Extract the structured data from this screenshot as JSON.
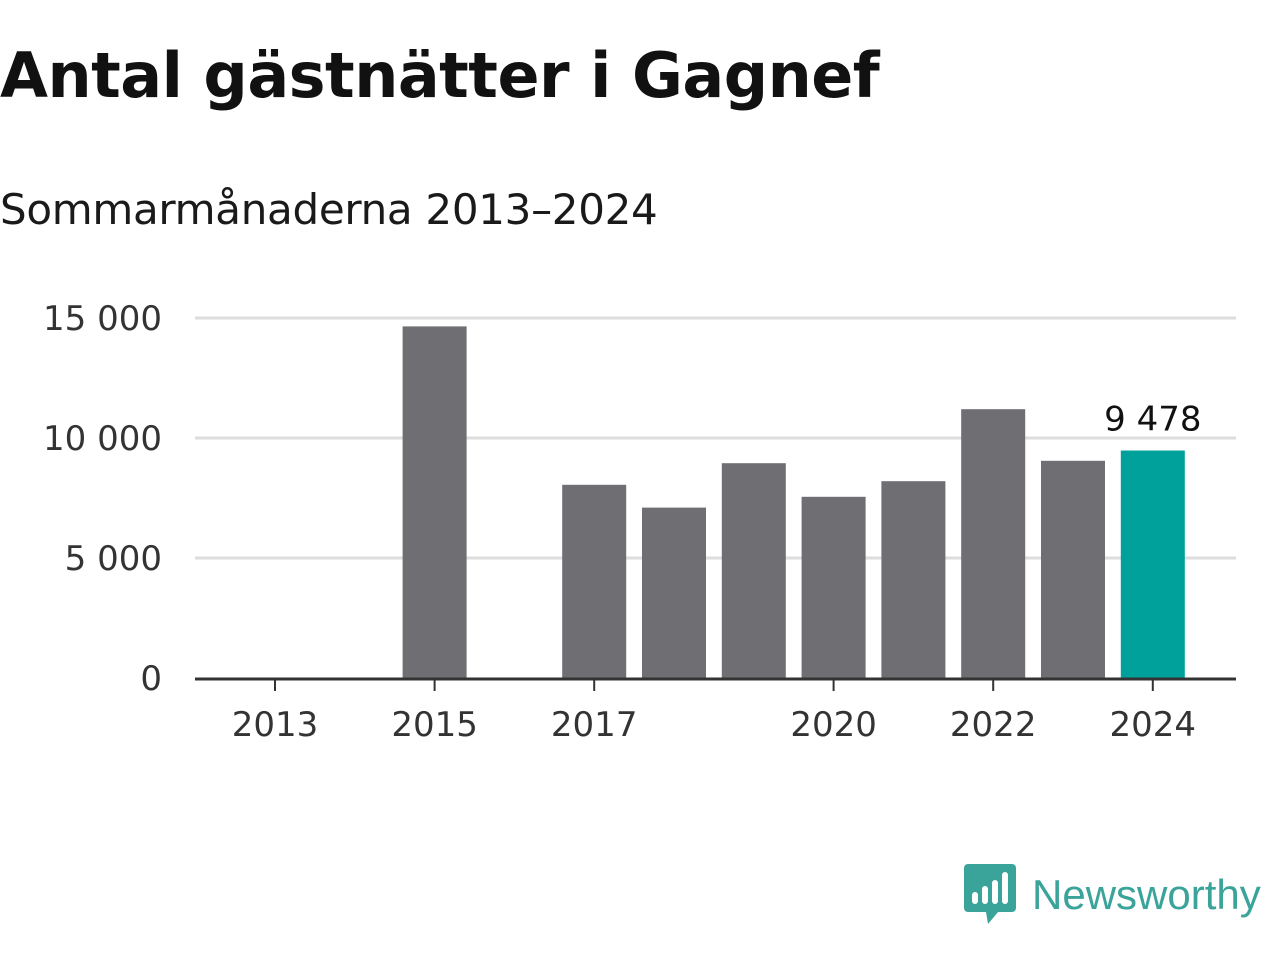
{
  "title": "Antal gästnätter i Gagnef",
  "subtitle": "Sommarmånaderna 2013–2024",
  "brand": {
    "name": "Newsworthy",
    "color": "#3aa39a",
    "icon": "newsworthy-logo-icon"
  },
  "colors": {
    "bar": "#6f6e73",
    "highlight": "#00a19a",
    "grid": "#dddddd",
    "axis": "#333333"
  },
  "chart_data": {
    "type": "bar",
    "title": "Antal gästnätter i Gagnef",
    "subtitle": "Sommarmånaderna 2013–2024",
    "xlabel": "",
    "ylabel": "",
    "categories": [
      "2013",
      "2014",
      "2015",
      "2016",
      "2017",
      "2018",
      "2019",
      "2020",
      "2021",
      "2022",
      "2023",
      "2024"
    ],
    "values": [
      null,
      null,
      14650,
      null,
      8050,
      7100,
      8950,
      7550,
      8200,
      11200,
      9050,
      9478
    ],
    "x_tick_labels": [
      "2013",
      "2015",
      "2017",
      "2020",
      "2022",
      "2024"
    ],
    "y_ticks": [
      0,
      5000,
      10000,
      15000
    ],
    "y_tick_labels": [
      "0",
      "5 000",
      "10 000",
      "15 000"
    ],
    "ylim": [
      0,
      15000
    ],
    "grid": true,
    "highlight_category": "2024",
    "data_labels": [
      {
        "category": "2024",
        "text": "9 478"
      }
    ]
  }
}
